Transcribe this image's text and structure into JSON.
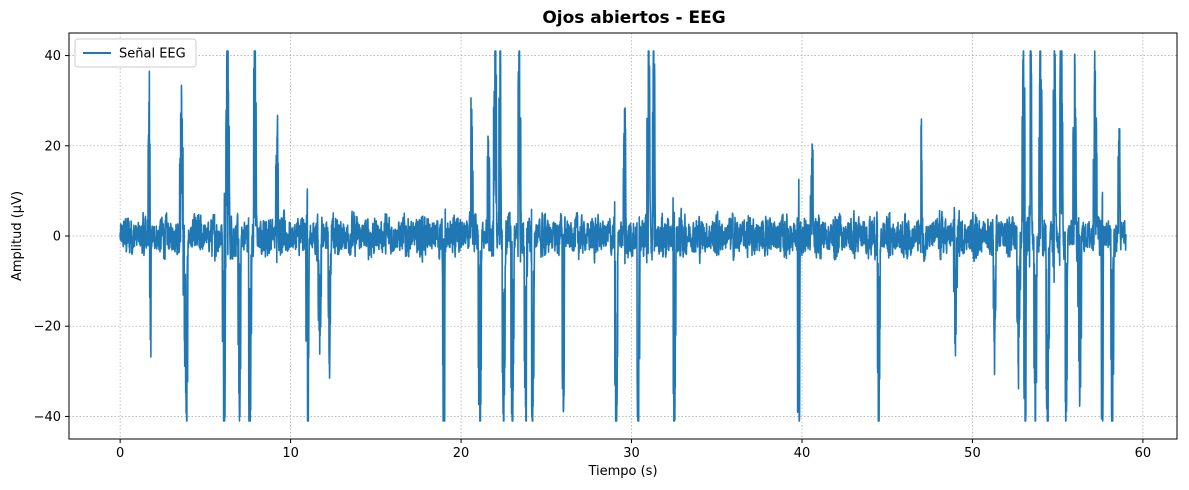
{
  "chart_data": {
    "type": "line",
    "title": "Ojos abiertos - EEG",
    "xlabel": "Tiempo (s)",
    "ylabel": "Amplitud (µV)",
    "xlim": [
      -3,
      62
    ],
    "ylim": [
      -45,
      45
    ],
    "x_ticks": [
      0,
      10,
      20,
      30,
      40,
      50,
      60
    ],
    "x_tick_labels": [
      "0",
      "10",
      "20",
      "30",
      "40",
      "50",
      "60"
    ],
    "y_ticks": [
      -40,
      -20,
      0,
      20,
      40
    ],
    "y_tick_labels": [
      "−40",
      "−20",
      "0",
      "20",
      "40"
    ],
    "grid": true,
    "legend_position": "top-left",
    "series": [
      {
        "name": "Señal EEG",
        "color": "#1f77b4",
        "x_range": [
          0,
          59
        ],
        "baseline_amplitude": 7,
        "bursts": [
          {
            "t": 1.7,
            "peak": 26
          },
          {
            "t": 1.8,
            "trough": -19
          },
          {
            "t": 3.6,
            "peak": 28
          },
          {
            "t": 3.8,
            "trough": -22
          },
          {
            "t": 3.9,
            "trough": -34
          },
          {
            "t": 6.1,
            "trough": -41
          },
          {
            "t": 6.3,
            "peak": 41
          },
          {
            "t": 7.0,
            "trough": -33
          },
          {
            "t": 7.6,
            "trough": -41
          },
          {
            "t": 7.9,
            "peak": 41
          },
          {
            "t": 9.2,
            "peak": 23
          },
          {
            "t": 11.0,
            "trough": -39
          },
          {
            "t": 11.7,
            "trough": -22
          },
          {
            "t": 12.3,
            "trough": -24
          },
          {
            "t": 19.0,
            "trough": -41
          },
          {
            "t": 20.6,
            "peak": 23
          },
          {
            "t": 21.1,
            "trough": -41
          },
          {
            "t": 21.6,
            "peak": 18
          },
          {
            "t": 22.0,
            "peak": 41
          },
          {
            "t": 22.3,
            "peak": 41
          },
          {
            "t": 22.5,
            "trough": -38
          },
          {
            "t": 23.0,
            "trough": -41
          },
          {
            "t": 23.4,
            "peak": 41
          },
          {
            "t": 23.8,
            "trough": -38
          },
          {
            "t": 24.2,
            "trough": -41
          },
          {
            "t": 26.0,
            "trough": -33
          },
          {
            "t": 29.1,
            "trough": -40
          },
          {
            "t": 29.6,
            "peak": 23
          },
          {
            "t": 30.4,
            "trough": -41
          },
          {
            "t": 31.0,
            "peak": 41
          },
          {
            "t": 31.3,
            "peak": 39
          },
          {
            "t": 32.5,
            "trough": -37
          },
          {
            "t": 39.8,
            "trough": -41
          },
          {
            "t": 40.6,
            "peak": 17
          },
          {
            "t": 44.5,
            "trough": -33
          },
          {
            "t": 47.0,
            "peak": 20
          },
          {
            "t": 49.0,
            "trough": -20
          },
          {
            "t": 51.3,
            "trough": -22
          },
          {
            "t": 52.7,
            "trough": -25
          },
          {
            "t": 53.0,
            "peak": 41
          },
          {
            "t": 53.1,
            "trough": -41
          },
          {
            "t": 53.4,
            "peak": 41
          },
          {
            "t": 53.7,
            "trough": -41
          },
          {
            "t": 54.0,
            "peak": 38
          },
          {
            "t": 54.4,
            "trough": -41
          },
          {
            "t": 54.8,
            "peak": 41
          },
          {
            "t": 55.2,
            "peak": 41
          },
          {
            "t": 55.5,
            "trough": -38
          },
          {
            "t": 56.0,
            "peak": 35
          },
          {
            "t": 56.3,
            "trough": -32
          },
          {
            "t": 57.2,
            "peak": 33
          },
          {
            "t": 57.6,
            "trough": -41
          },
          {
            "t": 58.2,
            "trough": -37
          },
          {
            "t": 58.6,
            "peak": 22
          }
        ]
      }
    ]
  }
}
